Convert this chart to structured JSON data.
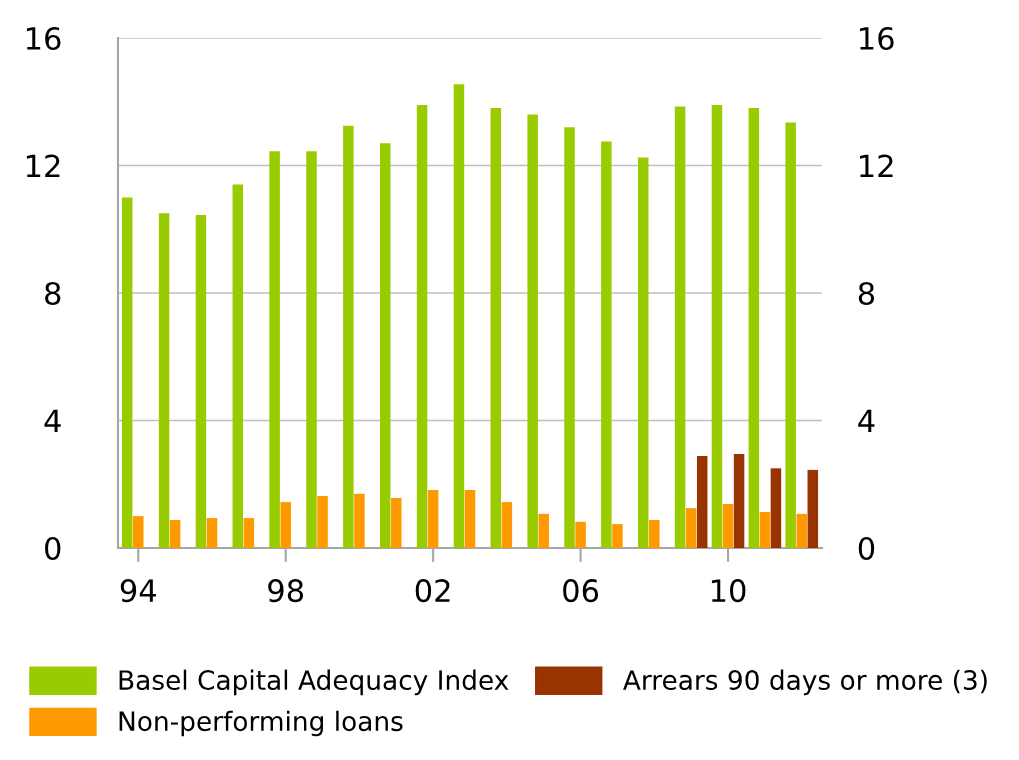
{
  "chart_data": {
    "type": "bar",
    "categories": [
      "94",
      null,
      null,
      null,
      "98",
      null,
      null,
      null,
      "02",
      null,
      null,
      null,
      "06",
      null,
      null,
      null,
      "10",
      null,
      null
    ],
    "series": [
      {
        "name": "Basel Capital Adequacy Index",
        "color": "#99cc00",
        "values": [
          11.0,
          10.5,
          10.45,
          11.4,
          12.45,
          12.45,
          13.25,
          12.7,
          13.9,
          14.55,
          13.8,
          13.6,
          13.2,
          12.75,
          12.25,
          13.85,
          13.9,
          13.8,
          13.35
        ]
      },
      {
        "name": "Non-performing loans",
        "color": "#ff9900",
        "values": [
          1.0,
          0.88,
          0.94,
          0.94,
          1.44,
          1.63,
          1.7,
          1.57,
          1.82,
          1.82,
          1.44,
          1.07,
          0.82,
          0.75,
          0.88,
          1.25,
          1.38,
          1.13,
          1.07
        ]
      },
      {
        "name": "Arrears 90 days or more (3)",
        "color": "#993300",
        "values": [
          null,
          null,
          null,
          null,
          null,
          null,
          null,
          null,
          null,
          null,
          null,
          null,
          null,
          null,
          null,
          2.89,
          2.95,
          2.5,
          2.45
        ]
      }
    ],
    "ylim": [
      0,
      16
    ],
    "yticks": [
      0,
      4,
      8,
      12,
      16
    ],
    "y2lim": [
      0,
      16
    ],
    "y2ticks": [
      0,
      4,
      8,
      12,
      16
    ],
    "grid": "y",
    "legend": "bottom"
  }
}
